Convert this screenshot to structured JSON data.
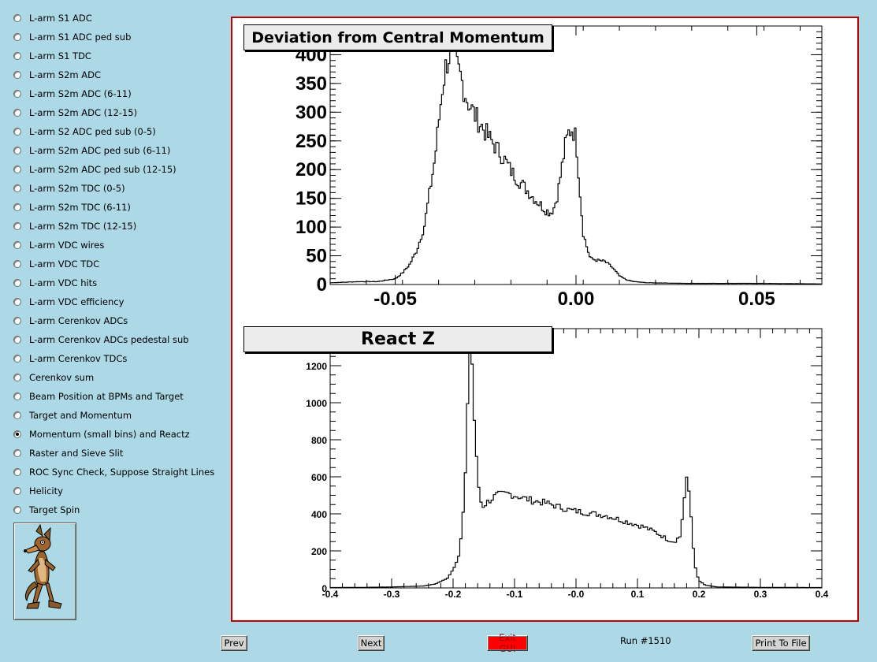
{
  "sidebar": {
    "items": [
      {
        "label": "L-arm S1 ADC",
        "selected": false
      },
      {
        "label": "L-arm S1 ADC ped sub",
        "selected": false
      },
      {
        "label": "L-arm S1 TDC",
        "selected": false
      },
      {
        "label": "L-arm S2m ADC",
        "selected": false
      },
      {
        "label": "L-arm S2m ADC (6-11)",
        "selected": false
      },
      {
        "label": "L-arm S2m ADC (12-15)",
        "selected": false
      },
      {
        "label": "L-arm S2 ADC ped sub (0-5)",
        "selected": false
      },
      {
        "label": "L-arm S2m ADC ped sub (6-11)",
        "selected": false
      },
      {
        "label": "L-arm S2m ADC ped sub (12-15)",
        "selected": false
      },
      {
        "label": "L-arm S2m TDC (0-5)",
        "selected": false
      },
      {
        "label": "L-arm S2m TDC (6-11)",
        "selected": false
      },
      {
        "label": "L-arm S2m TDC (12-15)",
        "selected": false
      },
      {
        "label": "L-arm VDC wires",
        "selected": false
      },
      {
        "label": "L-arm VDC TDC",
        "selected": false
      },
      {
        "label": "L-arm VDC hits",
        "selected": false
      },
      {
        "label": "L-arm VDC efficiency",
        "selected": false
      },
      {
        "label": "L-arm Cerenkov ADCs",
        "selected": false
      },
      {
        "label": "L-arm Cerenkov ADCs pedestal sub",
        "selected": false
      },
      {
        "label": "L-arm Cerenkov TDCs",
        "selected": false
      },
      {
        "label": "Cerenkov sum",
        "selected": false
      },
      {
        "label": "Beam Position at BPMs and Target",
        "selected": false
      },
      {
        "label": "Target and Momentum",
        "selected": false
      },
      {
        "label": "Momentum (small bins) and Reactz",
        "selected": true
      },
      {
        "label": "Raster and Sieve Slit",
        "selected": false
      },
      {
        "label": "ROC Sync Check, Suppose Straight Lines",
        "selected": false
      },
      {
        "label": "Helicity",
        "selected": false
      },
      {
        "label": "Target Spin",
        "selected": false
      }
    ]
  },
  "logo_icon": "coyote-cartoon-icon",
  "buttons": {
    "prev": "Prev",
    "next": "Next",
    "exit": "Exit GUI",
    "print": "Print To File"
  },
  "run_label": "Run #1510",
  "colors": {
    "background": "#add8e6",
    "frame_border": "#c00000",
    "exit_button": "#ff0000"
  },
  "chart_data": [
    {
      "type": "histogram",
      "title": "Deviation from Central Momentum",
      "xlabel": "",
      "ylabel": "",
      "xlim": [
        -0.068,
        0.068
      ],
      "ylim": [
        0,
        450
      ],
      "x_ticks": [
        "-0.05",
        "0.00",
        "0.05"
      ],
      "y_ticks": [
        "0",
        "50",
        "100",
        "150",
        "200",
        "250",
        "300",
        "350",
        "400"
      ],
      "x": [
        -0.068,
        -0.06,
        -0.055,
        -0.05,
        -0.048,
        -0.046,
        -0.044,
        -0.042,
        -0.041,
        -0.04,
        -0.039,
        -0.038,
        -0.037,
        -0.036,
        -0.035,
        -0.034,
        -0.033,
        -0.032,
        -0.031,
        -0.03,
        -0.028,
        -0.026,
        -0.024,
        -0.022,
        -0.02,
        -0.018,
        -0.016,
        -0.014,
        -0.012,
        -0.01,
        -0.008,
        -0.007,
        -0.006,
        -0.005,
        -0.004,
        -0.003,
        -0.002,
        -0.001,
        0.0,
        0.001,
        0.002,
        0.003,
        0.004,
        0.006,
        0.008,
        0.01,
        0.012,
        0.014,
        0.016,
        0.02,
        0.03,
        0.04,
        0.05,
        0.068
      ],
      "values": [
        3,
        5,
        5,
        10,
        20,
        35,
        60,
        100,
        140,
        180,
        220,
        280,
        340,
        380,
        400,
        390,
        380,
        365,
        340,
        320,
        295,
        275,
        255,
        238,
        220,
        198,
        182,
        168,
        153,
        140,
        128,
        126,
        135,
        160,
        200,
        240,
        265,
        272,
        255,
        170,
        90,
        65,
        45,
        42,
        40,
        30,
        15,
        8,
        5,
        3,
        2,
        2,
        2,
        1
      ]
    },
    {
      "type": "histogram",
      "title": "React Z",
      "xlabel": "",
      "ylabel": "",
      "xlim": [
        -0.4,
        0.4
      ],
      "ylim": [
        0,
        1400
      ],
      "x_ticks": [
        "-0.4",
        "-0.3",
        "-0.2",
        "-0.1",
        "-0.0",
        "0.1",
        "0.2",
        "0.3",
        "0.4"
      ],
      "y_ticks": [
        "0",
        "200",
        "400",
        "600",
        "800",
        "1000",
        "1200"
      ],
      "x": [
        -0.4,
        -0.35,
        -0.3,
        -0.25,
        -0.23,
        -0.21,
        -0.2,
        -0.19,
        -0.185,
        -0.18,
        -0.176,
        -0.172,
        -0.168,
        -0.164,
        -0.16,
        -0.156,
        -0.152,
        -0.145,
        -0.13,
        -0.11,
        -0.09,
        -0.07,
        -0.05,
        -0.03,
        -0.01,
        0.01,
        0.03,
        0.05,
        0.07,
        0.09,
        0.11,
        0.13,
        0.15,
        0.16,
        0.17,
        0.175,
        0.18,
        0.185,
        0.19,
        0.195,
        0.2,
        0.21,
        0.23,
        0.3,
        0.4
      ],
      "values": [
        2,
        3,
        5,
        10,
        20,
        50,
        100,
        180,
        330,
        600,
        1050,
        1500,
        1100,
        800,
        600,
        480,
        440,
        460,
        500,
        510,
        490,
        470,
        460,
        440,
        420,
        410,
        400,
        390,
        370,
        350,
        330,
        300,
        260,
        250,
        280,
        450,
        580,
        500,
        250,
        90,
        40,
        15,
        5,
        3,
        2
      ]
    }
  ]
}
